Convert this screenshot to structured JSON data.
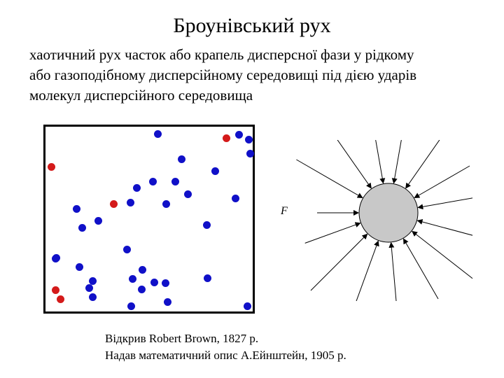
{
  "title": "Броунівський рух",
  "definition_lines": [
    "хаотичний рух часток або крапель дисперсної фази у рідкому",
    "або газоподібному дисперсійному середовищі під дією ударів",
    "молекул дисперсійного середовища"
  ],
  "colors": {
    "blue_particle": "#1010c8",
    "red_particle": "#d41a1a",
    "sphere_fill": "#c8c8c8"
  },
  "particles": {
    "blue_count": 33,
    "red_count": 5
  },
  "force_label": "F",
  "credits": {
    "line1": "Відкрив Robert Brown, 1827 р.",
    "line2": "Надав математичний опис А.Ейнштейн, 1905 р."
  }
}
